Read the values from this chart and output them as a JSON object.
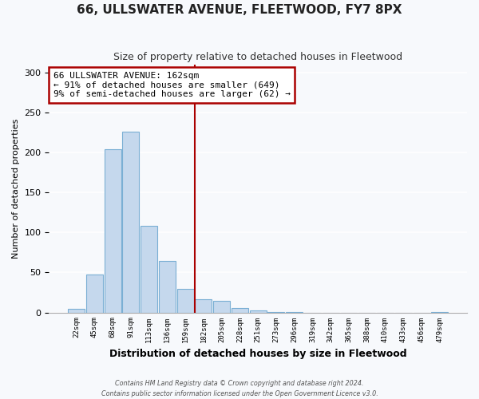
{
  "title": "66, ULLSWATER AVENUE, FLEETWOOD, FY7 8PX",
  "subtitle": "Size of property relative to detached houses in Fleetwood",
  "xlabel": "Distribution of detached houses by size in Fleetwood",
  "ylabel": "Number of detached properties",
  "bin_labels": [
    "22sqm",
    "45sqm",
    "68sqm",
    "91sqm",
    "113sqm",
    "136sqm",
    "159sqm",
    "182sqm",
    "205sqm",
    "228sqm",
    "251sqm",
    "273sqm",
    "296sqm",
    "319sqm",
    "342sqm",
    "365sqm",
    "388sqm",
    "410sqm",
    "433sqm",
    "456sqm",
    "479sqm"
  ],
  "bar_heights": [
    5,
    47,
    204,
    226,
    108,
    64,
    29,
    17,
    15,
    6,
    3,
    1,
    1,
    0,
    0,
    0,
    0,
    0,
    0,
    0,
    1
  ],
  "bar_color": "#c5d8ed",
  "bar_edge_color": "#7aafd4",
  "vline_color": "#aa0000",
  "annotation_text": "66 ULLSWATER AVENUE: 162sqm\n← 91% of detached houses are smaller (649)\n9% of semi-detached houses are larger (62) →",
  "annotation_box_color": "#aa0000",
  "ylim": [
    0,
    310
  ],
  "yticks": [
    0,
    50,
    100,
    150,
    200,
    250,
    300
  ],
  "footer_line1": "Contains HM Land Registry data © Crown copyright and database right 2024.",
  "footer_line2": "Contains public sector information licensed under the Open Government Licence v3.0.",
  "bg_color": "#f7f9fc",
  "grid_color": "#ffffff",
  "title_fontsize": 11,
  "subtitle_fontsize": 9,
  "xlabel_fontsize": 9,
  "ylabel_fontsize": 8
}
